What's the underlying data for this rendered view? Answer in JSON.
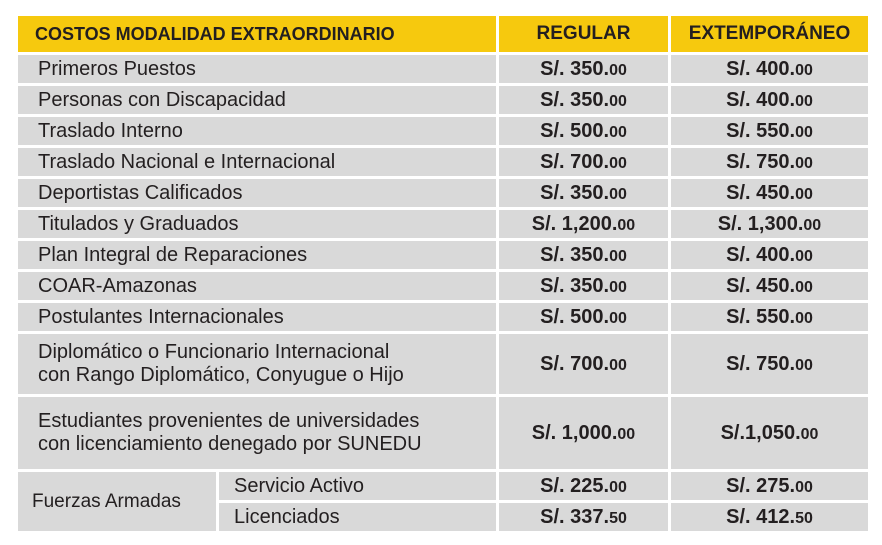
{
  "header": {
    "title": "COSTOS MODALIDAD EXTRAORDINARIO",
    "regular": "REGULAR",
    "extemporaneo": "EXTEMPORÁNEO"
  },
  "rows": [
    {
      "label": "Primeros Puestos",
      "regular_main": "S/. 350.",
      "regular_cents": "00",
      "ext_main": "S/. 400.",
      "ext_cents": "00"
    },
    {
      "label": "Personas con Discapacidad",
      "regular_main": "S/. 350.",
      "regular_cents": "00",
      "ext_main": "S/. 400.",
      "ext_cents": "00"
    },
    {
      "label": "Traslado Interno",
      "regular_main": "S/. 500.",
      "regular_cents": "00",
      "ext_main": "S/. 550.",
      "ext_cents": "00"
    },
    {
      "label": "Traslado Nacional e Internacional",
      "regular_main": "S/. 700.",
      "regular_cents": "00",
      "ext_main": "S/. 750.",
      "ext_cents": "00"
    },
    {
      "label": "Deportistas Calificados",
      "regular_main": "S/. 350.",
      "regular_cents": "00",
      "ext_main": "S/. 450.",
      "ext_cents": "00"
    },
    {
      "label": "Titulados y Graduados",
      "regular_main": "S/. 1,200.",
      "regular_cents": "00",
      "ext_main": "S/. 1,300.",
      "ext_cents": "00"
    },
    {
      "label": "Plan Integral de Reparaciones",
      "regular_main": "S/. 350.",
      "regular_cents": "00",
      "ext_main": "S/. 400.",
      "ext_cents": "00"
    },
    {
      "label": "COAR-Amazonas",
      "regular_main": "S/. 350.",
      "regular_cents": "00",
      "ext_main": "S/. 450.",
      "ext_cents": "00"
    },
    {
      "label": "Postulantes Internacionales",
      "regular_main": "S/. 500.",
      "regular_cents": "00",
      "ext_main": "S/. 550.",
      "ext_cents": "00"
    }
  ],
  "diplomatico": {
    "line1": "Diplomático o Funcionario Internacional",
    "line2": "con Rango  Diplomático, Conyugue o Hijo",
    "regular_main": "S/. 700.",
    "regular_cents": "00",
    "ext_main": "S/. 750.",
    "ext_cents": "00"
  },
  "estudiantes": {
    "line1": "Estudiantes provenientes de universidades",
    "line2": "con licenciamiento denegado por SUNEDU",
    "regular_main": "S/. 1,000.",
    "regular_cents": "00",
    "ext_main": "S/.1,050.",
    "ext_cents": "00"
  },
  "fuerzas": {
    "group": "Fuerzas Armadas",
    "items": [
      {
        "label": "Servicio Activo",
        "regular_main": "S/. 225.",
        "regular_cents": "00",
        "ext_main": "S/. 275.",
        "ext_cents": "00"
      },
      {
        "label": "Licenciados",
        "regular_main": "S/. 337.",
        "regular_cents": "50",
        "ext_main": "S/. 412.",
        "ext_cents": "50"
      }
    ]
  },
  "colors": {
    "header_bg": "#f6c90e",
    "row_bg": "#d9d9d9",
    "text": "#231f20"
  }
}
